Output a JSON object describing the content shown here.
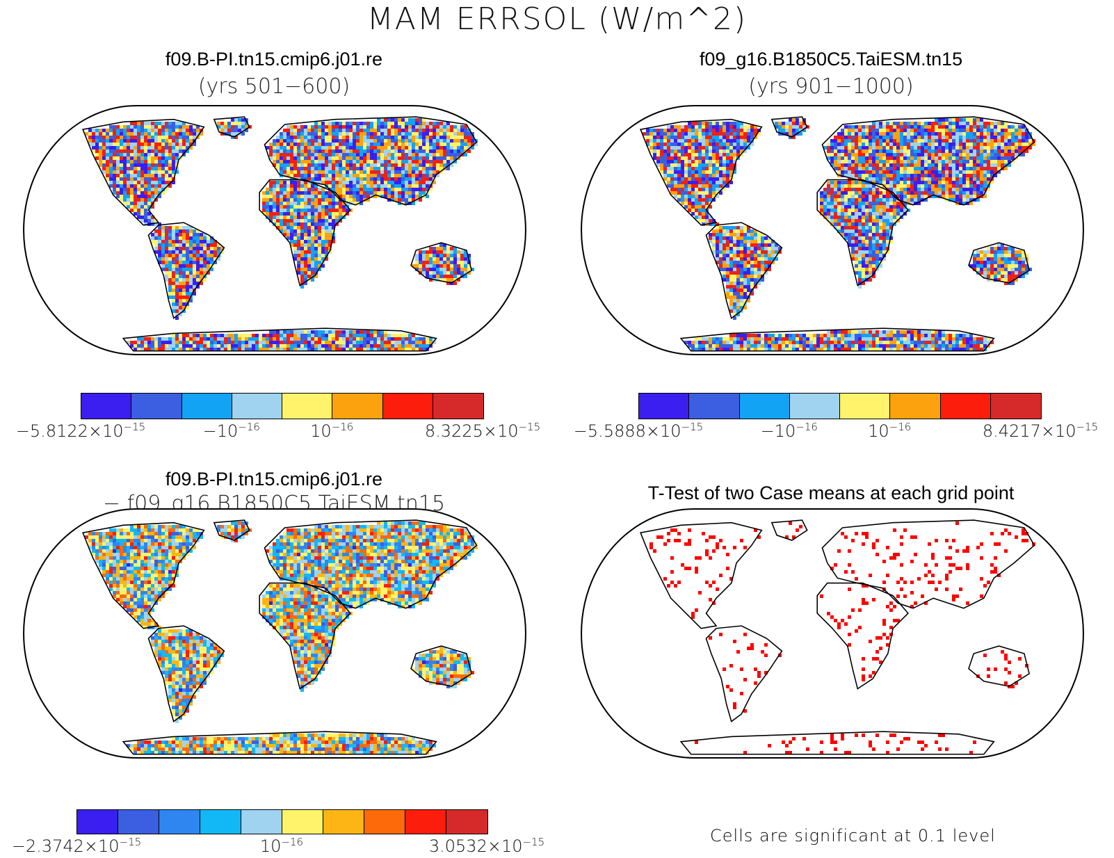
{
  "figure": {
    "title": "MAM ERRSOL (W/m^2)"
  },
  "panels": {
    "top_left": {
      "case": "f09.B-PI.tn15.cmip6.j01.re",
      "years": "(yrs 501−600)",
      "colorbar": {
        "colors": [
          "#3a1ff0",
          "#3b5fe0",
          "#12a3f5",
          "#9fd3ef",
          "#fff36b",
          "#fca20f",
          "#fd1d0c",
          "#d62a2a"
        ],
        "labels": [
          {
            "base": "−5.8122×10",
            "exp": "−15"
          },
          {
            "base": "−10",
            "exp": "−16"
          },
          {
            "base": "10",
            "exp": "−16"
          },
          {
            "base": "8.3225×10",
            "exp": "−15"
          }
        ]
      }
    },
    "top_right": {
      "case": "f09_g16.B1850C5.TaiESM.tn15",
      "years": "(yrs 901−1000)",
      "colorbar": {
        "colors": [
          "#3a1ff0",
          "#3b5fe0",
          "#12a3f5",
          "#9fd3ef",
          "#fff36b",
          "#fca20f",
          "#fd1d0c",
          "#d62a2a"
        ],
        "labels": [
          {
            "base": "−5.5888×10",
            "exp": "−15"
          },
          {
            "base": "−10",
            "exp": "−16"
          },
          {
            "base": "10",
            "exp": "−16"
          },
          {
            "base": "8.4217×10",
            "exp": "−15"
          }
        ]
      }
    },
    "bottom_left": {
      "case": "f09.B-PI.tn15.cmip6.j01.re",
      "minus_case": "− f09_g16.B1850C5.TaiESM.tn15",
      "colorbar": {
        "colors": [
          "#3a1ff0",
          "#3b5fe0",
          "#2f86f0",
          "#12b8f5",
          "#9fd3ef",
          "#fff36b",
          "#fcb515",
          "#fc6a0a",
          "#fd1d0c",
          "#d62a2a"
        ],
        "labels": [
          {
            "base": "−2.3742×10",
            "exp": "−15"
          },
          {
            "base": "10",
            "exp": "−16"
          },
          {
            "base": "3.0532×10",
            "exp": "−15"
          }
        ]
      }
    },
    "bottom_right": {
      "title": "T-Test of two Case means at each grid point",
      "note": "Cells are significant at 0.1 level",
      "significant_color": "#ff0000"
    }
  },
  "map": {
    "projection": "robinson",
    "background": "#ffffff",
    "land_palette_default": [
      "#3a1ff0",
      "#3b5fe0",
      "#12a3f5",
      "#9fd3ef",
      "#fff36b",
      "#fca20f",
      "#fd1d0c",
      "#d62a2a"
    ]
  }
}
